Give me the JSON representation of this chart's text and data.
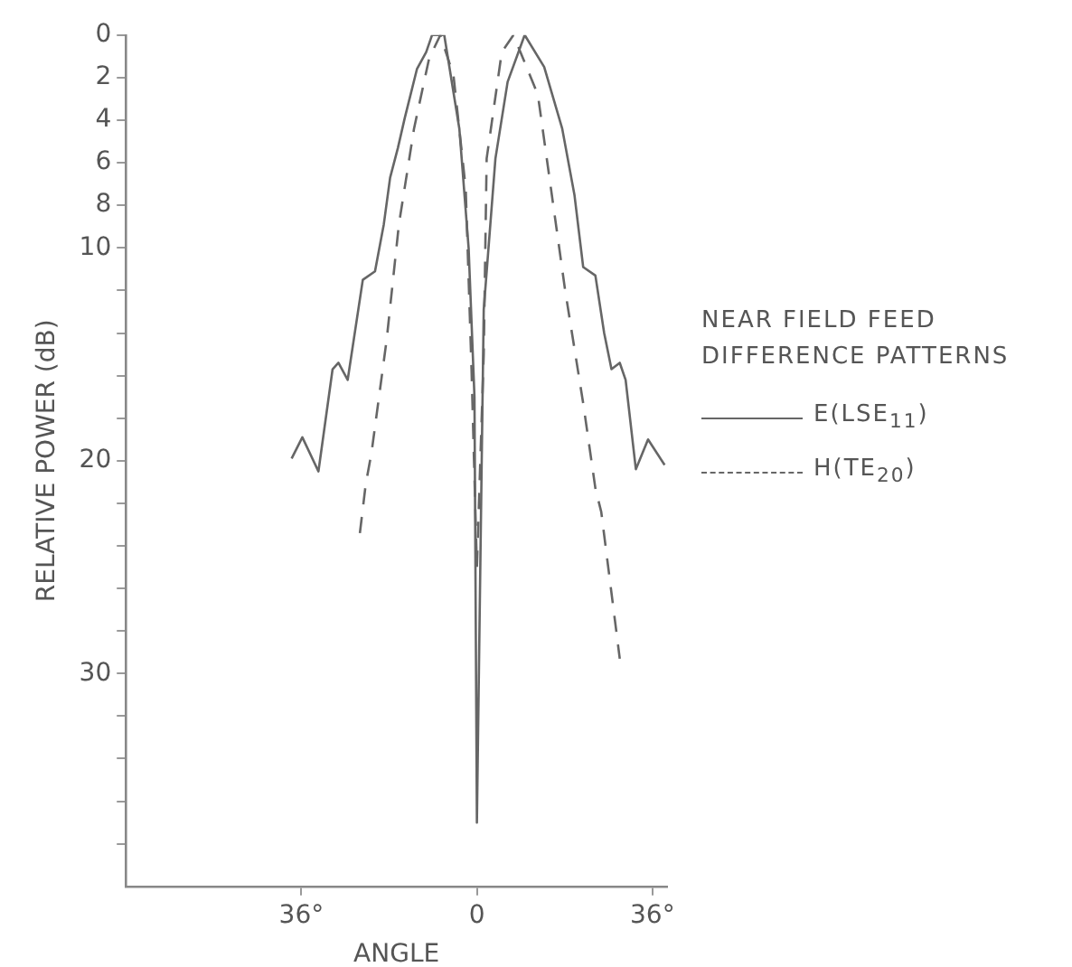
{
  "chart_data": {
    "type": "line",
    "xlabel": "ANGLE",
    "ylabel": "RELATIVE POWER (dB)",
    "legend_title": "NEAR FIELD FEED\nDIFFERENCE PATTERNS",
    "legend": "right",
    "marker": "none",
    "xlim": [
      -72,
      39
    ],
    "xticks": [
      {
        "value": -36,
        "label": "36°"
      },
      0,
      {
        "value": 36,
        "label": "36°"
      }
    ],
    "ylim": [
      40,
      0
    ],
    "yticks": [
      0,
      2,
      4,
      6,
      8,
      10,
      {
        "value": 12,
        "label": null
      },
      {
        "value": 14,
        "label": null
      },
      {
        "value": 16,
        "label": null
      },
      {
        "value": 18,
        "label": null
      },
      20,
      {
        "value": 22,
        "label": null
      },
      {
        "value": 24,
        "label": null
      },
      {
        "value": 26,
        "label": null
      },
      {
        "value": 28,
        "label": null
      },
      30,
      {
        "value": 32,
        "label": null
      },
      {
        "value": 34,
        "label": null
      },
      {
        "value": 36,
        "label": null
      },
      {
        "value": 38,
        "label": null
      }
    ],
    "series": [
      {
        "name": "E(LSE$_{11}$)",
        "color": "#666666",
        "line_style": "solid",
        "x": [
          -38,
          -35.8,
          -32.5,
          -29.6,
          -28.4,
          -26.5,
          -23.4,
          -20.9,
          -19.1,
          -17.8,
          -16.2,
          -14.8,
          -12.3,
          -10.4,
          -9.2,
          -6.7,
          -3.6,
          -1.7,
          -0.5,
          0,
          1.4,
          3.8,
          6.3,
          9.8,
          13.8,
          17.5,
          20,
          21.8,
          24.3,
          26.1,
          27.6,
          29.3,
          30.5,
          32.6,
          35.1,
          38.5
        ],
        "values": [
          19.9,
          18.9,
          20.5,
          15.7,
          15.4,
          16.2,
          11.5,
          11.1,
          8.9,
          6.7,
          5.3,
          3.9,
          1.6,
          0.8,
          0,
          0,
          4.4,
          10,
          17,
          37,
          12.9,
          5.8,
          2.2,
          0,
          1.5,
          4.4,
          7.5,
          10.9,
          11.3,
          14,
          15.7,
          15.4,
          16.2,
          20.4,
          19,
          20.2
        ]
      },
      {
        "name": "H(TE$_{20}$)",
        "color": "#666666",
        "line_style": "dashed",
        "x": [
          -24,
          -22.8,
          -21.6,
          -18.5,
          -16,
          -12.9,
          -9.8,
          -7.5,
          -4.8,
          -2.3,
          -1.1,
          0,
          1.4,
          2,
          5.1,
          7.5,
          12.5,
          18.1,
          21.8,
          24.3,
          25.5,
          29.3
        ],
        "values": [
          23.4,
          21.1,
          19.6,
          14.3,
          8.9,
          4.4,
          1.1,
          0,
          1.9,
          7.2,
          15.7,
          25,
          15,
          5.8,
          0.8,
          0,
          2.8,
          12,
          17.3,
          21.3,
          22.4,
          29.3
        ]
      }
    ]
  }
}
